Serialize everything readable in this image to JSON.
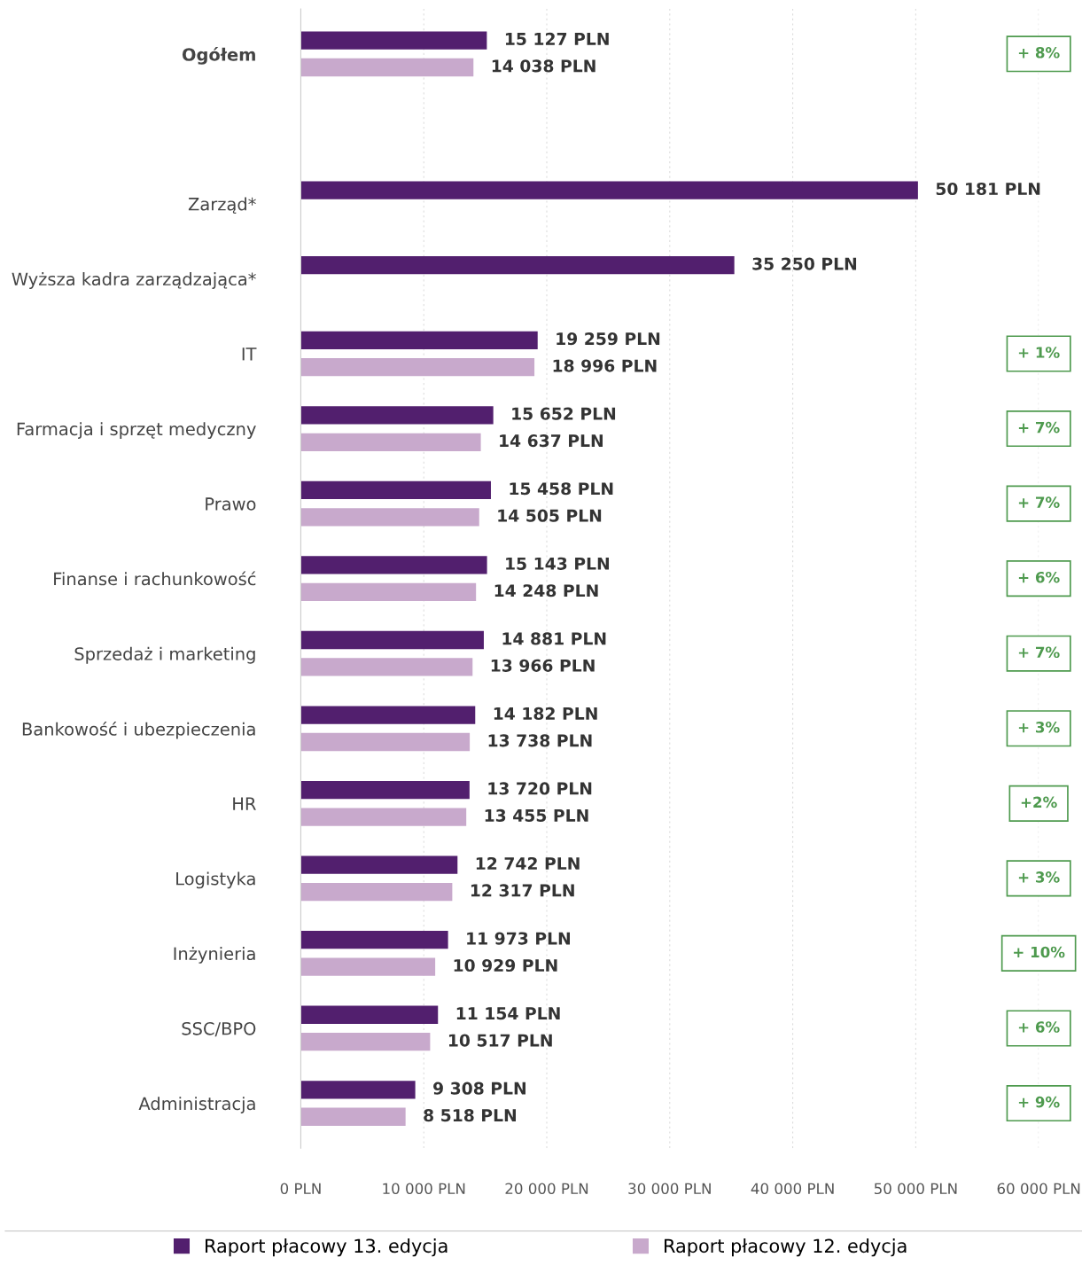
{
  "chart_data": {
    "type": "bar",
    "orientation": "horizontal",
    "categories": [
      "Ogółem",
      null,
      "Zarząd*",
      "Wyższa kadra zarządzająca*",
      "IT",
      "Farmacja i sprzęt medyczny",
      "Prawo",
      "Finanse i rachunkowość",
      "Sprzedaż i marketing",
      "Bankowość i ubezpieczenia",
      "HR",
      "Logistyka",
      "Inżynieria",
      "SSC/BPO",
      "Administracja"
    ],
    "series": [
      {
        "name": "Raport płacowy 13. edycja",
        "color": "#521f6e",
        "values": [
          15127,
          null,
          50181,
          35250,
          19259,
          15652,
          15458,
          15143,
          14881,
          14182,
          13720,
          12742,
          11973,
          11154,
          9308
        ],
        "value_labels": [
          "15 127 PLN",
          null,
          "50 181 PLN",
          "35 250 PLN",
          "19 259 PLN",
          "15 652 PLN",
          "15 458 PLN",
          "15 143 PLN",
          "14 881 PLN",
          "14 182 PLN",
          "13 720 PLN",
          "12 742 PLN",
          "11 973 PLN",
          "11 154 PLN",
          "9 308 PLN"
        ]
      },
      {
        "name": "Raport płacowy 12. edycja",
        "color": "#c8a9cc",
        "values": [
          14038,
          null,
          null,
          null,
          18996,
          14637,
          14505,
          14248,
          13966,
          13738,
          13455,
          12317,
          10929,
          10517,
          8518
        ],
        "value_labels": [
          "14 038 PLN",
          null,
          null,
          null,
          "18 996 PLN",
          "14 637 PLN",
          "14 505 PLN",
          "14 248 PLN",
          "13 966 PLN",
          "13 738 PLN",
          "13 455 PLN",
          "12 317 PLN",
          "10 929 PLN",
          "10 517 PLN",
          "8 518 PLN"
        ]
      }
    ],
    "xlim": [
      0,
      60000
    ],
    "xticks": [
      {
        "value": 0,
        "label": "0 PLN"
      },
      {
        "value": 10000,
        "label": "10 000 PLN"
      },
      {
        "value": 20000,
        "label": "20 000 PLN"
      },
      {
        "value": 30000,
        "label": "30 000 PLN"
      },
      {
        "value": 40000,
        "label": "40 000 PLN"
      },
      {
        "value": 50000,
        "label": "50 000 PLN"
      },
      {
        "value": 60000,
        "label": "60 000 PLN"
      }
    ],
    "grid": "x",
    "legend": "bottom",
    "annotations": [
      "+ 8%",
      "+ 1%",
      "+ 7%",
      "+ 7%",
      "+ 6%",
      "+ 7%",
      "+ 3%",
      "+2%",
      "+ 3%",
      "+ 10%",
      "+ 6%",
      "+ 9%"
    ]
  }
}
